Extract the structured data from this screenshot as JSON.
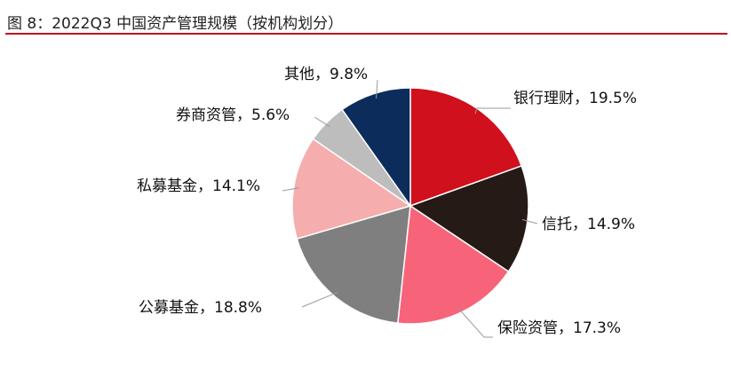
{
  "figure": {
    "title": "图 8：2022Q3 中国资产管理规模（按机构划分）",
    "rule_color": "#c0101e"
  },
  "chart_data": {
    "type": "pie",
    "title": "",
    "unit": "%",
    "start_angle_deg": 0,
    "direction": "clockwise",
    "slices": [
      {
        "name": "银行理财",
        "value": 19.5,
        "label": "银行理财，19.5%",
        "color": "#d0101c"
      },
      {
        "name": "信托",
        "value": 14.9,
        "label": "信托，14.9%",
        "color": "#251a16"
      },
      {
        "name": "保险资管",
        "value": 17.3,
        "label": "保险资管，17.3%",
        "color": "#f7647a"
      },
      {
        "name": "公募基金",
        "value": 18.8,
        "label": "公募基金，18.8%",
        "color": "#7f7f7f"
      },
      {
        "name": "私募基金",
        "value": 14.1,
        "label": "私募基金，14.1%",
        "color": "#f5adad"
      },
      {
        "name": "券商资管",
        "value": 5.6,
        "label": "券商资管，5.6%",
        "color": "#bdbdbd"
      },
      {
        "name": "其他",
        "value": 9.8,
        "label": "其他，9.8%",
        "color": "#0c2d5c"
      }
    ]
  }
}
